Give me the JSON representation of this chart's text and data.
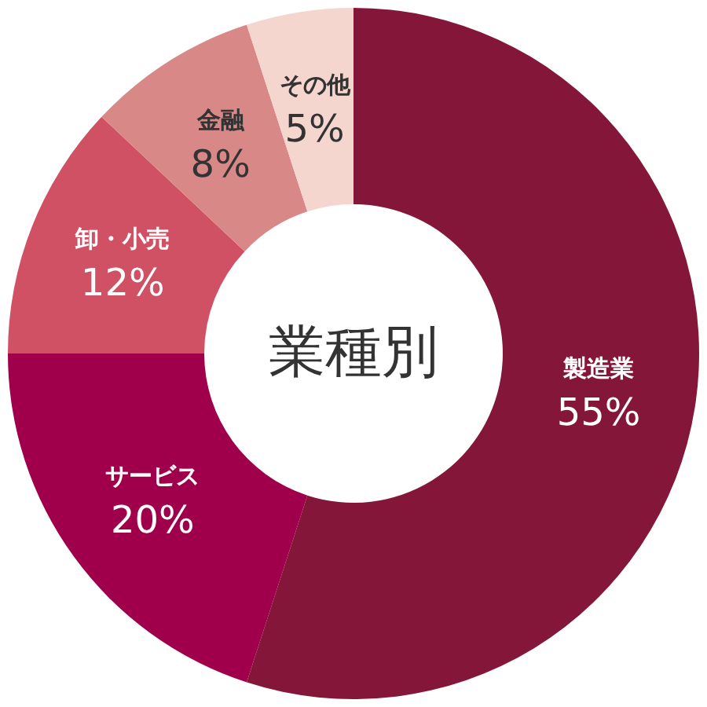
{
  "chart_data": {
    "type": "donut",
    "title": "業種別",
    "categories": [
      "製造業",
      "サービス",
      "卸・小売",
      "金融",
      "その他"
    ],
    "values": [
      55,
      20,
      12,
      8,
      5
    ],
    "colors": [
      "#84163a",
      "#a0004b",
      "#d05064",
      "#d98888",
      "#f5d6cf"
    ],
    "value_labels": [
      "55%",
      "20%",
      "12%",
      "8%",
      "5%"
    ]
  }
}
